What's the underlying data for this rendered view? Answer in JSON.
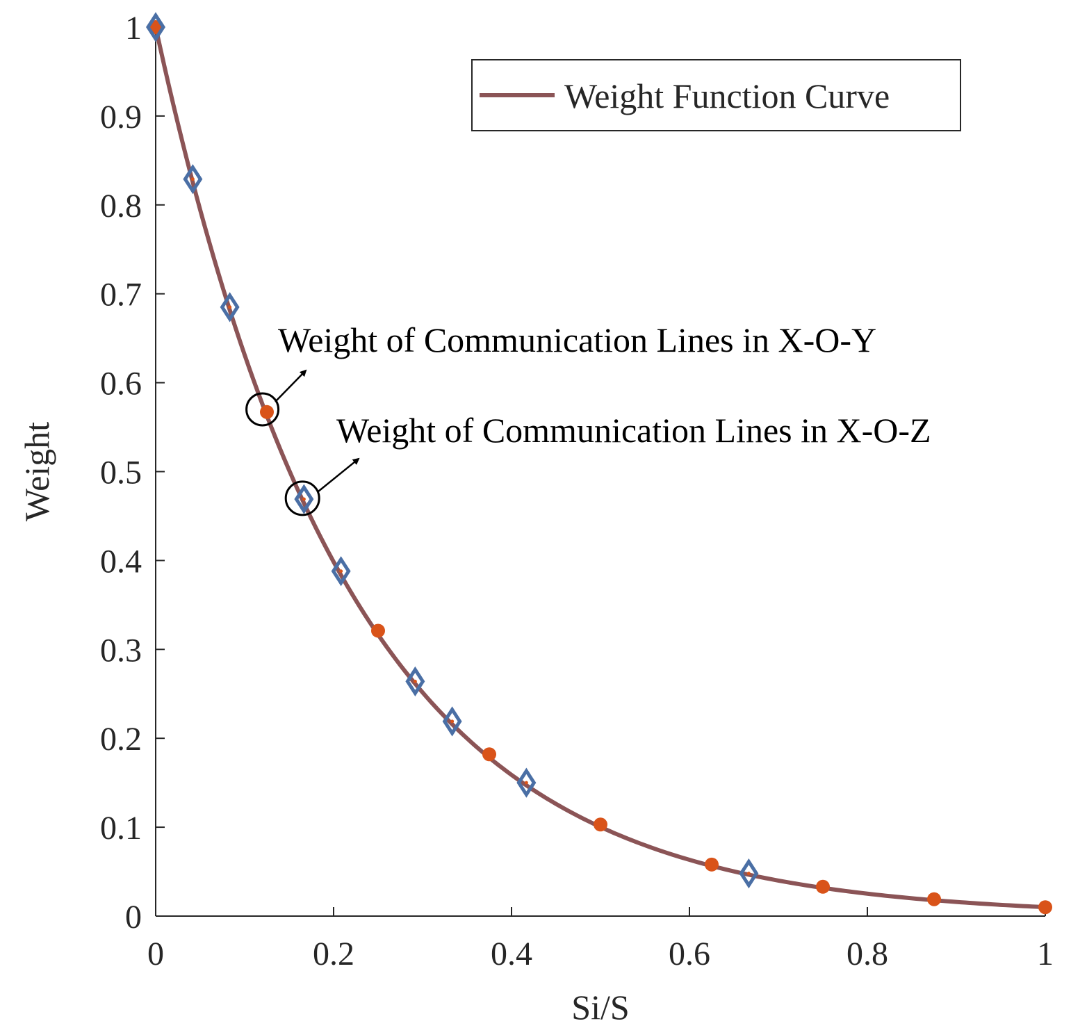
{
  "chart_data": {
    "type": "line",
    "title": "",
    "xlabel": "Si/S",
    "ylabel": "Weight",
    "xlim": [
      0,
      1
    ],
    "ylim": [
      0,
      1
    ],
    "x_ticks": [
      0,
      0.2,
      0.4,
      0.6,
      0.8,
      1
    ],
    "x_tick_labels": [
      "0",
      "0.2",
      "0.4",
      "0.6",
      "0.8",
      "1"
    ],
    "y_ticks": [
      0,
      0.1,
      0.2,
      0.3,
      0.4,
      0.5,
      0.6,
      0.7,
      0.8,
      0.9,
      1
    ],
    "y_tick_labels": [
      "0",
      "0.1",
      "0.2",
      "0.3",
      "0.4",
      "0.5",
      "0.6",
      "0.7",
      "0.8",
      "0.9",
      "1"
    ],
    "grid": false,
    "legend": {
      "position": "top-right",
      "entries": [
        "Weight Function Curve"
      ]
    },
    "curve": {
      "name": "Weight Function Curve",
      "function": "exp(-4.6*x)",
      "color": "#8b5456"
    },
    "series": [
      {
        "name": "Weight of Communication Lines in X-O-Y",
        "marker": "circle",
        "color": "#d95319",
        "x": [
          0,
          0.125,
          0.25,
          0.375,
          0.5,
          0.625,
          0.75,
          0.875,
          1
        ],
        "y": [
          1,
          0.567,
          0.321,
          0.182,
          0.103,
          0.058,
          0.033,
          0.019,
          0.01
        ]
      },
      {
        "name": "Weight of Communication Lines in X-O-Z",
        "marker": "diamond",
        "color": "#4a6fa5",
        "x": [
          0,
          0.0417,
          0.0833,
          0.1667,
          0.2083,
          0.2917,
          0.3333,
          0.4167,
          0.6667
        ],
        "y": [
          1,
          0.829,
          0.685,
          0.469,
          0.388,
          0.264,
          0.219,
          0.15,
          0.048
        ]
      }
    ],
    "annotations": [
      {
        "text": "Weight of Communication Lines in X-O-Y",
        "point": [
          0.12,
          0.57
        ]
      },
      {
        "text": "Weight of Communication Lines in X-O-Z",
        "point": [
          0.165,
          0.47
        ]
      }
    ]
  }
}
